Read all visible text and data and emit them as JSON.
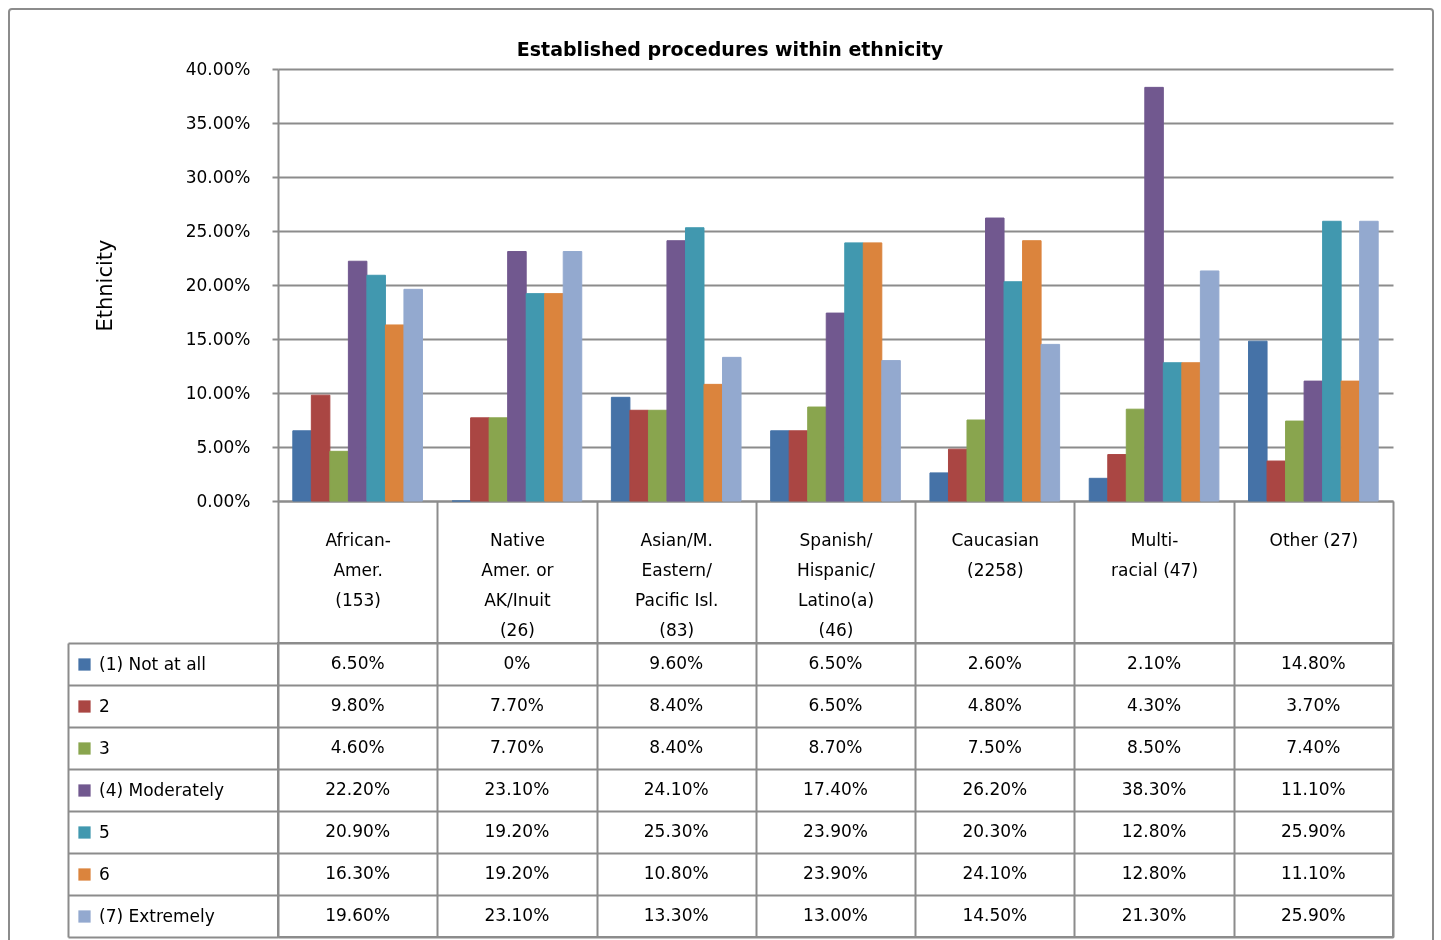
{
  "chart_data": {
    "type": "bar",
    "title": "Established procedures within ethnicity",
    "ylabel": "Ethnicity",
    "categories": [
      "African-Amer. (153)",
      "Native Amer. or AK/Inuit (26)",
      "Asian/M. Eastern/Pacific Isl. (83)",
      "Spanish/Hispanic/Latino(a) (46)",
      "Caucasian (2258)",
      "Multi-racial (47)",
      "Other (27)"
    ],
    "series": [
      {
        "name": "(1) Not at all",
        "color": "#4572a7",
        "values": [
          6.5,
          0,
          9.6,
          6.5,
          2.6,
          2.1,
          14.8
        ],
        "value_labels": [
          "6.50%",
          "0%",
          "9.60%",
          "6.50%",
          "2.60%",
          "2.10%",
          "14.80%"
        ]
      },
      {
        "name": "2",
        "color": "#aa4643",
        "values": [
          9.8,
          7.7,
          8.4,
          6.5,
          4.8,
          4.3,
          3.7
        ],
        "value_labels": [
          "9.80%",
          "7.70%",
          "8.40%",
          "6.50%",
          "4.80%",
          "4.30%",
          "3.70%"
        ]
      },
      {
        "name": "3",
        "color": "#89a54e",
        "values": [
          4.6,
          7.7,
          8.4,
          8.7,
          7.5,
          8.5,
          7.4
        ],
        "value_labels": [
          "4.60%",
          "7.70%",
          "8.40%",
          "8.70%",
          "7.50%",
          "8.50%",
          "7.40%"
        ]
      },
      {
        "name": "(4) Moderately",
        "color": "#71588f",
        "values": [
          22.2,
          23.1,
          24.1,
          17.4,
          26.2,
          38.3,
          11.1
        ],
        "value_labels": [
          "22.20%",
          "23.10%",
          "24.10%",
          "17.40%",
          "26.20%",
          "38.30%",
          "11.10%"
        ]
      },
      {
        "name": "5",
        "color": "#4198af",
        "values": [
          20.9,
          19.2,
          25.3,
          23.9,
          20.3,
          12.8,
          25.9
        ],
        "value_labels": [
          "20.90%",
          "19.20%",
          "25.30%",
          "23.90%",
          "20.30%",
          "12.80%",
          "25.90%"
        ]
      },
      {
        "name": "6",
        "color": "#db843d",
        "values": [
          16.3,
          19.2,
          10.8,
          23.9,
          24.1,
          12.8,
          11.1
        ],
        "value_labels": [
          "16.30%",
          "19.20%",
          "10.80%",
          "23.90%",
          "24.10%",
          "12.80%",
          "11.10%"
        ]
      },
      {
        "name": "(7) Extremely",
        "color": "#93a9cf",
        "values": [
          19.6,
          23.1,
          13.3,
          13.0,
          14.5,
          21.3,
          25.9
        ],
        "value_labels": [
          "19.60%",
          "23.10%",
          "13.30%",
          "13.00%",
          "14.50%",
          "21.30%",
          "25.90%"
        ]
      }
    ],
    "ylim": [
      0,
      40
    ],
    "yticks": [
      {
        "value": 0,
        "label": "0.00%"
      },
      {
        "value": 5,
        "label": "5.00%"
      },
      {
        "value": 10,
        "label": "10.00%"
      },
      {
        "value": 15,
        "label": "15.00%"
      },
      {
        "value": 20,
        "label": "20.00%"
      },
      {
        "value": 25,
        "label": "25.00%"
      },
      {
        "value": 30,
        "label": "30.00%"
      },
      {
        "value": 35,
        "label": "35.00%"
      },
      {
        "value": 40,
        "label": "40.00%"
      }
    ],
    "grid": "y",
    "legend": "bottom left"
  }
}
